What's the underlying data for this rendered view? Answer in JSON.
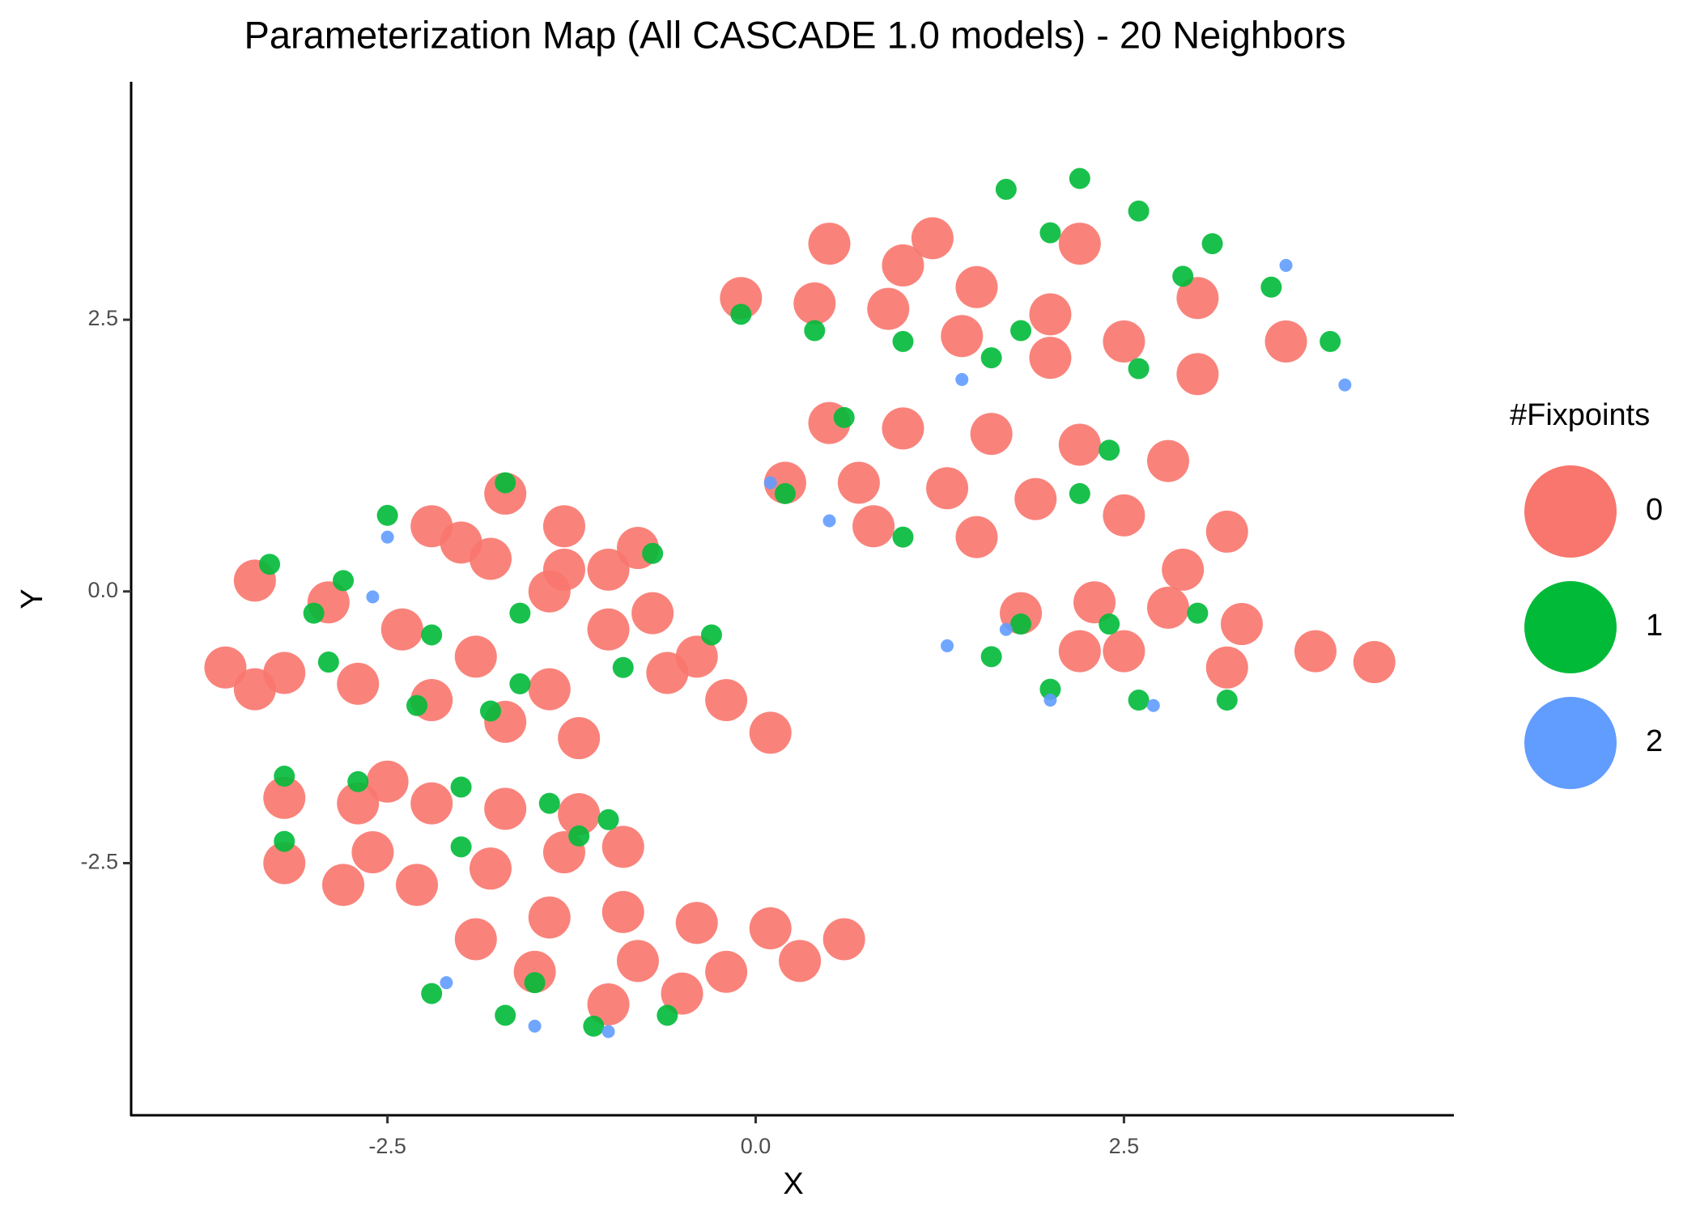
{
  "chart_data": {
    "type": "scatter",
    "title": "Parameterization Map (All CASCADE 1.0 models) - 20 Neighbors",
    "x_label": "X",
    "y_label": "Y",
    "legend_title": "#Fixpoints",
    "xlim": [
      -4.24,
      4.74
    ],
    "ylim": [
      -4.82,
      4.69
    ],
    "xticks": [
      -2.5,
      {
        "value": 0,
        "label": "0.0"
      },
      2.5
    ],
    "yticks": [
      -2.5,
      {
        "value": 0,
        "label": "0.0"
      },
      2.5
    ],
    "series": [
      {
        "name": "0",
        "color": "#F8766D",
        "x": [
          2.2,
          3.0,
          3.6,
          0.5,
          1.0,
          1.5,
          2.0,
          2.5,
          3.0,
          1.2,
          -0.1,
          0.4,
          0.9,
          1.4,
          2.0,
          0.5,
          1.0,
          1.6,
          2.2,
          2.8,
          0.2,
          0.7,
          1.3,
          1.9,
          2.5,
          3.2,
          0.8,
          1.5,
          1.8,
          2.3,
          2.8,
          3.3,
          3.8,
          4.2,
          2.5,
          3.2,
          2.9,
          2.2,
          -1.7,
          -1.3,
          -1.0,
          -0.7,
          -0.4,
          -0.2,
          0.1,
          -1.3,
          -0.8,
          -2.2,
          -1.8,
          -1.4,
          -1.0,
          -0.6,
          -2.0,
          -3.4,
          -2.9,
          -2.4,
          -1.9,
          -1.4,
          -3.6,
          -3.2,
          -2.7,
          -2.2,
          -3.4,
          -1.7,
          -1.2,
          -3.2,
          -2.7,
          -2.2,
          -1.7,
          -1.2,
          -2.5,
          -3.2,
          -2.8,
          -2.3,
          -1.8,
          -1.3,
          -0.9,
          -2.6,
          -1.9,
          -1.4,
          -0.9,
          -0.4,
          0.1,
          0.6,
          -1.5,
          -0.8,
          -0.2,
          -1.0,
          -0.5,
          0.3
        ],
        "y": [
          3.2,
          2.7,
          2.3,
          3.2,
          3.0,
          2.8,
          2.55,
          2.3,
          2.0,
          3.25,
          2.7,
          2.65,
          2.6,
          2.35,
          2.15,
          1.55,
          1.5,
          1.45,
          1.35,
          1.2,
          1.0,
          1.0,
          0.95,
          0.85,
          0.7,
          0.55,
          0.6,
          0.5,
          -0.2,
          -0.1,
          -0.15,
          -0.3,
          -0.55,
          -0.65,
          -0.55,
          -0.7,
          0.2,
          -0.55,
          0.9,
          0.6,
          0.2,
          -0.2,
          -0.6,
          -1.0,
          -1.3,
          0.2,
          0.4,
          0.6,
          0.3,
          0.0,
          -0.35,
          -0.75,
          0.45,
          0.1,
          -0.1,
          -0.35,
          -0.6,
          -0.9,
          -0.7,
          -0.75,
          -0.85,
          -1.0,
          -0.9,
          -1.2,
          -1.35,
          -1.9,
          -1.95,
          -1.95,
          -2.0,
          -2.05,
          -1.75,
          -2.5,
          -2.7,
          -2.7,
          -2.55,
          -2.4,
          -2.35,
          -2.4,
          -3.2,
          -3.0,
          -2.95,
          -3.05,
          -3.1,
          -3.2,
          -3.5,
          -3.4,
          -3.5,
          -3.8,
          -3.7,
          -3.4
        ]
      },
      {
        "name": "1",
        "color": "#00BA38",
        "x": [
          1.7,
          2.2,
          2.6,
          3.1,
          3.5,
          3.9,
          2.0,
          2.9,
          1.8,
          2.6,
          -0.1,
          0.4,
          1.0,
          1.6,
          0.6,
          2.4,
          0.2,
          1.0,
          2.2,
          1.6,
          2.0,
          2.6,
          3.2,
          2.4,
          3.0,
          1.8,
          -1.7,
          -0.7,
          -0.3,
          -2.5,
          -1.6,
          -0.9,
          -3.3,
          -2.8,
          -2.2,
          -1.6,
          -3.0,
          -2.9,
          -2.3,
          -1.8,
          -3.2,
          -2.7,
          -2.0,
          -1.4,
          -1.0,
          -3.2,
          -2.0,
          -1.2,
          -2.2,
          -1.7,
          -1.1,
          -0.6,
          -1.5
        ],
        "y": [
          3.7,
          3.8,
          3.5,
          3.2,
          2.8,
          2.3,
          3.3,
          2.9,
          2.4,
          2.05,
          2.55,
          2.4,
          2.3,
          2.15,
          1.6,
          1.3,
          0.9,
          0.5,
          0.9,
          -0.6,
          -0.9,
          -1.0,
          -1.0,
          -0.3,
          -0.2,
          -0.3,
          1.0,
          0.35,
          -0.4,
          0.7,
          -0.2,
          -0.7,
          0.25,
          0.1,
          -0.4,
          -0.85,
          -0.2,
          -0.65,
          -1.05,
          -1.1,
          -1.7,
          -1.75,
          -1.8,
          -1.95,
          -2.1,
          -2.3,
          -2.35,
          -2.25,
          -3.7,
          -3.9,
          -4.0,
          -3.9,
          -3.6
        ]
      },
      {
        "name": "2",
        "color": "#619CFF",
        "x": [
          3.6,
          4.0,
          1.4,
          0.1,
          0.5,
          1.3,
          1.7,
          2.0,
          2.7,
          -2.5,
          -2.6,
          -2.1,
          -1.5,
          -1.0
        ],
        "y": [
          3.0,
          1.9,
          1.95,
          1.0,
          0.65,
          -0.5,
          -0.35,
          -1.0,
          -1.05,
          0.5,
          -0.05,
          -3.6,
          -4.0,
          -4.05
        ]
      }
    ]
  }
}
